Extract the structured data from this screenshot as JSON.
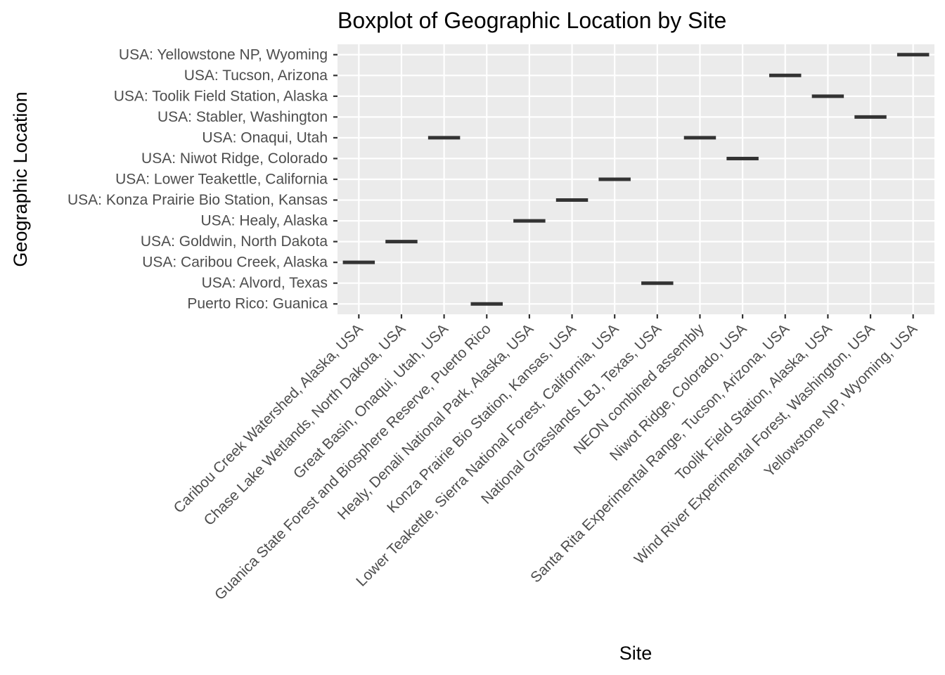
{
  "chart_data": {
    "type": "boxplot",
    "title": "Boxplot of Geographic Location by Site",
    "xlabel": "Site",
    "ylabel": "Geographic Location",
    "grid": true,
    "legend": "none",
    "colors": {
      "panel_background": "#ebebeb",
      "grid": "#ffffff",
      "box": "#333333",
      "tick_text": "#4d4d4d",
      "tick_mark": "#333333"
    },
    "x_categories": [
      "Caribou Creek Watershed, Alaska, USA",
      "Chase Lake Wetlands, North Dakota, USA",
      "Great Basin, Onaqui, Utah, USA",
      "Guanica State Forest and Biosphere Reserve, Puerto Rico",
      "Healy, Denali National Park, Alaska, USA",
      "Konza Prairie Bio Station, Kansas, USA",
      "Lower Teakettle, Sierra National Forest, California, USA",
      "National Grasslands LBJ, Texas, USA",
      "NEON combined assembly",
      "Niwot Ridge, Colorado, USA",
      "Santa Rita Experimental Range, Tucson, Arizona, USA",
      "Toolik Field Station, Alaska, USA",
      "Wind River Experimental Forest, Washington, USA",
      "Yellowstone NP, Wyoming, USA"
    ],
    "y_categories": [
      "Puerto Rico: Guanica",
      "USA: Alvord, Texas",
      "USA: Caribou Creek, Alaska",
      "USA: Goldwin, North Dakota",
      "USA: Healy, Alaska",
      "USA: Konza Prairie Bio Station, Kansas",
      "USA: Lower Teakettle, California",
      "USA: Niwot Ridge, Colorado",
      "USA: Onaqui, Utah",
      "USA: Stabler, Washington",
      "USA: Toolik Field Station, Alaska",
      "USA: Tucson, Arizona",
      "USA: Yellowstone NP, Wyoming"
    ],
    "boxes": [
      {
        "site": "Caribou Creek Watershed, Alaska, USA",
        "location": "USA: Caribou Creek, Alaska"
      },
      {
        "site": "Chase Lake Wetlands, North Dakota, USA",
        "location": "USA: Goldwin, North Dakota"
      },
      {
        "site": "Great Basin, Onaqui, Utah, USA",
        "location": "USA: Onaqui, Utah"
      },
      {
        "site": "Guanica State Forest and Biosphere Reserve, Puerto Rico",
        "location": "Puerto Rico: Guanica"
      },
      {
        "site": "Healy, Denali National Park, Alaska, USA",
        "location": "USA: Healy, Alaska"
      },
      {
        "site": "Konza Prairie Bio Station, Kansas, USA",
        "location": "USA: Konza Prairie Bio Station, Kansas"
      },
      {
        "site": "Lower Teakettle, Sierra National Forest, California, USA",
        "location": "USA: Lower Teakettle, California"
      },
      {
        "site": "National Grasslands LBJ, Texas, USA",
        "location": "USA: Alvord, Texas"
      },
      {
        "site": "NEON combined assembly",
        "location": "USA: Onaqui, Utah"
      },
      {
        "site": "Niwot Ridge, Colorado, USA",
        "location": "USA: Niwot Ridge, Colorado"
      },
      {
        "site": "Santa Rita Experimental Range, Tucson, Arizona, USA",
        "location": "USA: Tucson, Arizona"
      },
      {
        "site": "Toolik Field Station, Alaska, USA",
        "location": "USA: Toolik Field Station, Alaska"
      },
      {
        "site": "Wind River Experimental Forest, Washington, USA",
        "location": "USA: Stabler, Washington"
      },
      {
        "site": "Yellowstone NP, Wyoming, USA",
        "location": "USA: Yellowstone NP, Wyoming"
      }
    ]
  }
}
